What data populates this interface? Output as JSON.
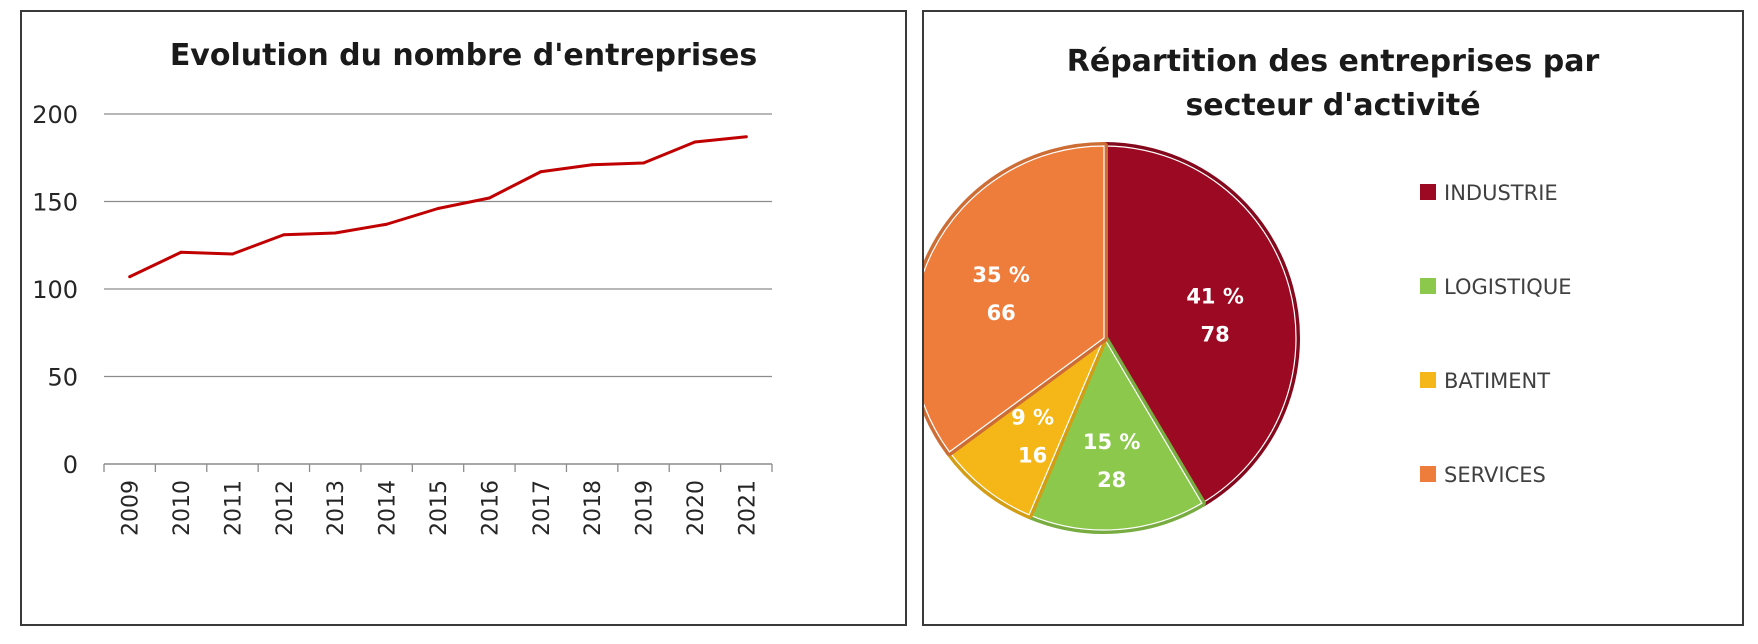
{
  "charts": {
    "line": {
      "title": "Evolution du nombre d'entreprises"
    },
    "pie": {
      "title_line1": "Répartition des entreprises par",
      "title_line2": "secteur d'activité"
    }
  },
  "chart_data": [
    {
      "type": "line",
      "title": "Evolution du nombre d'entreprises",
      "xlabel": "",
      "ylabel": "",
      "x": [
        "2009",
        "2010",
        "2011",
        "2012",
        "2013",
        "2014",
        "2015",
        "2016",
        "2017",
        "2018",
        "2019",
        "2020",
        "2021"
      ],
      "series": [
        {
          "values": [
            107,
            121,
            120,
            131,
            132,
            137,
            146,
            152,
            167,
            171,
            172,
            184,
            187
          ],
          "color": "#C00000"
        }
      ],
      "ylim": [
        0,
        200
      ],
      "yticks": [
        0,
        50,
        100,
        150,
        200
      ],
      "grid": true,
      "legend": "none"
    },
    {
      "type": "pie",
      "title": "Répartition des entreprises par secteur d'activité",
      "slices": [
        {
          "label": "INDUSTRIE",
          "value": 78,
          "percent_label": "41 %",
          "color": "#9B0A22"
        },
        {
          "label": "LOGISTIQUE",
          "value": 28,
          "percent_label": "15 %",
          "color": "#8CC84B"
        },
        {
          "label": "BATIMENT",
          "value": 16,
          "percent_label": "9 %",
          "color": "#F5B617"
        },
        {
          "label": "SERVICES",
          "value": 66,
          "percent_label": "35 %",
          "color": "#EE7D3C"
        }
      ],
      "legend": "right"
    }
  ]
}
